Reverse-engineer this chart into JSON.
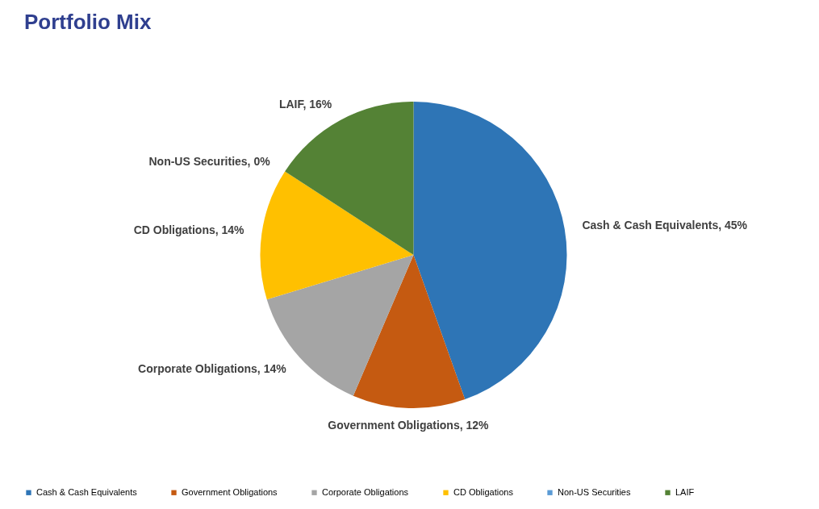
{
  "chart_data": {
    "type": "pie",
    "title": "Portfolio Mix",
    "categories": [
      "Cash & Cash Equivalents",
      "Government Obligations",
      "Corporate Obligations",
      "CD Obligations",
      "Non-US Securities",
      "LAIF"
    ],
    "values": [
      45,
      12,
      14,
      14,
      0,
      16
    ],
    "value_labels": [
      "Cash & Cash Equivalents, 45%",
      "Government Obligations, 12%",
      "Corporate Obligations, 14%",
      "CD Obligations, 14%",
      "Non-US Securities, 0%",
      "LAIF, 16%"
    ],
    "colors": [
      "#2e75b6",
      "#c55a11",
      "#a5a5a5",
      "#ffc000",
      "#5b9bd5",
      "#548235"
    ],
    "legend": "bottom"
  }
}
